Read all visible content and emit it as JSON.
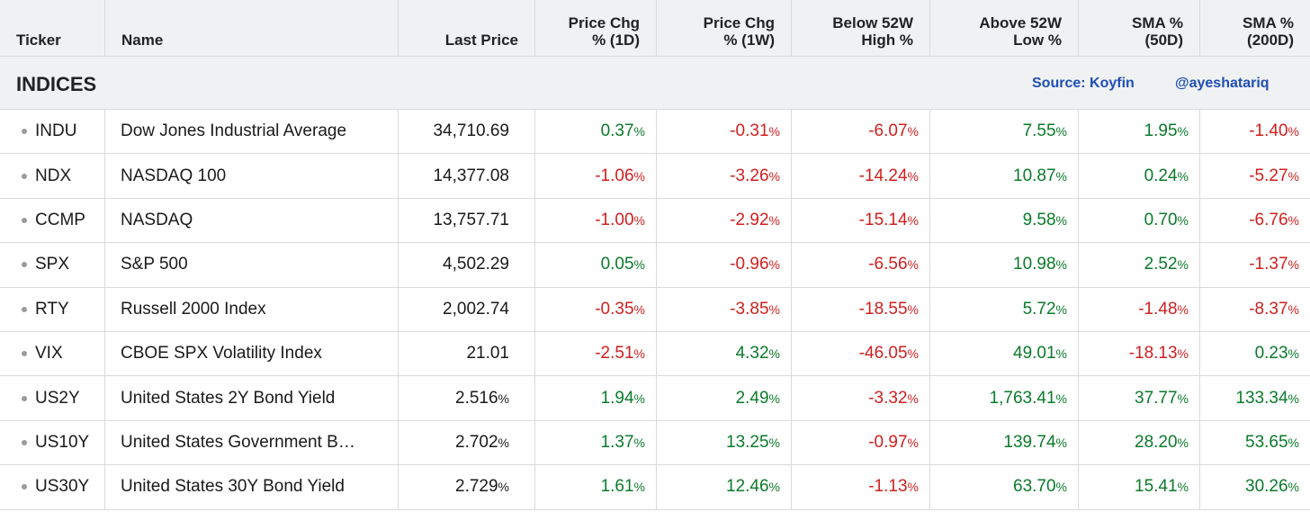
{
  "columns": {
    "ticker": "Ticker",
    "name": "Name",
    "last_price": "Last Price",
    "chg_1d": [
      "Price Chg",
      "% (1D)"
    ],
    "chg_1w": [
      "Price Chg",
      "% (1W)"
    ],
    "below_52w": [
      "Below 52W",
      "High %"
    ],
    "above_52w": [
      "Above 52W",
      "Low %"
    ],
    "sma_50": [
      "SMA %",
      "(50D)"
    ],
    "sma_200": [
      "SMA %",
      "(200D)"
    ]
  },
  "section": {
    "title": "INDICES",
    "source": "Source: Koyfin",
    "handle": "@ayeshatariq"
  },
  "colors": {
    "positive": "#0b7a2b",
    "negative": "#d11f1f",
    "link": "#1f4fb4",
    "header_bg": "#f0f1f3"
  },
  "rows": [
    {
      "ticker": "INDU",
      "name": "Dow Jones Industrial Average",
      "last": "34,710.69",
      "last_pct": "",
      "c1d": "0.37",
      "c1w": "-0.31",
      "b52": "-6.07",
      "a52": "7.55",
      "s50": "1.95",
      "s200": "-1.40"
    },
    {
      "ticker": "NDX",
      "name": "NASDAQ 100",
      "last": "14,377.08",
      "last_pct": "",
      "c1d": "-1.06",
      "c1w": "-3.26",
      "b52": "-14.24",
      "a52": "10.87",
      "s50": "0.24",
      "s200": "-5.27"
    },
    {
      "ticker": "CCMP",
      "name": "NASDAQ",
      "last": "13,757.71",
      "last_pct": "",
      "c1d": "-1.00",
      "c1w": "-2.92",
      "b52": "-15.14",
      "a52": "9.58",
      "s50": "0.70",
      "s200": "-6.76"
    },
    {
      "ticker": "SPX",
      "name": "S&P 500",
      "last": "4,502.29",
      "last_pct": "",
      "c1d": "0.05",
      "c1w": "-0.96",
      "b52": "-6.56",
      "a52": "10.98",
      "s50": "2.52",
      "s200": "-1.37"
    },
    {
      "ticker": "RTY",
      "name": "Russell 2000 Index",
      "last": "2,002.74",
      "last_pct": "",
      "c1d": "-0.35",
      "c1w": "-3.85",
      "b52": "-18.55",
      "a52": "5.72",
      "s50": "-1.48",
      "s200": "-8.37"
    },
    {
      "ticker": "VIX",
      "name": "CBOE SPX Volatility Index",
      "last": "21.01",
      "last_pct": "",
      "c1d": "-2.51",
      "c1w": "4.32",
      "b52": "-46.05",
      "a52": "49.01",
      "s50": "-18.13",
      "s200": "0.23"
    },
    {
      "ticker": "US2Y",
      "name": "United States 2Y Bond Yield",
      "last": "2.516",
      "last_pct": "%",
      "c1d": "1.94",
      "c1w": "2.49",
      "b52": "-3.32",
      "a52": "1,763.41",
      "s50": "37.77",
      "s200": "133.34"
    },
    {
      "ticker": "US10Y",
      "name": "United States Government B…",
      "last": "2.702",
      "last_pct": "%",
      "c1d": "1.37",
      "c1w": "13.25",
      "b52": "-0.97",
      "a52": "139.74",
      "s50": "28.20",
      "s200": "53.65"
    },
    {
      "ticker": "US30Y",
      "name": "United States 30Y Bond Yield",
      "last": "2.729",
      "last_pct": "%",
      "c1d": "1.61",
      "c1w": "12.46",
      "b52": "-1.13",
      "a52": "63.70",
      "s50": "15.41",
      "s200": "30.26"
    }
  ],
  "pct_symbol": "%"
}
